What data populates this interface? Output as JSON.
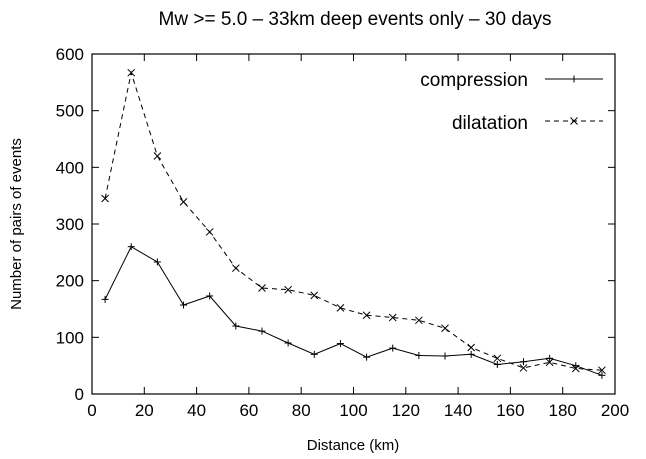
{
  "chart_data": {
    "type": "line",
    "title": "Mw >= 5.0 – 33km deep events only – 30 days",
    "xlabel": "Distance (km)",
    "ylabel": "Number of pairs of events",
    "xlim": [
      0,
      200
    ],
    "ylim": [
      0,
      600
    ],
    "x_ticks": [
      "0",
      "20",
      "40",
      "60",
      "80",
      "100",
      "120",
      "140",
      "160",
      "180",
      "200"
    ],
    "y_ticks": [
      "0",
      "100",
      "200",
      "300",
      "400",
      "500",
      "600"
    ],
    "grid": false,
    "legend_position": "top-right",
    "x": [
      5,
      15,
      25,
      35,
      45,
      55,
      65,
      75,
      85,
      95,
      105,
      115,
      125,
      135,
      145,
      155,
      165,
      175,
      185,
      195
    ],
    "series": [
      {
        "name": "compression",
        "line_style": "solid",
        "marker": "plus",
        "values": [
          167,
          260,
          233,
          157,
          173,
          120,
          111,
          90,
          70,
          89,
          65,
          81,
          68,
          67,
          70,
          52,
          57,
          63,
          50,
          33
        ]
      },
      {
        "name": "dilatation",
        "line_style": "dashed",
        "marker": "cross",
        "values": [
          345,
          567,
          420,
          339,
          286,
          222,
          187,
          184,
          174,
          152,
          139,
          135,
          130,
          116,
          82,
          63,
          46,
          56,
          45,
          42
        ]
      }
    ]
  }
}
